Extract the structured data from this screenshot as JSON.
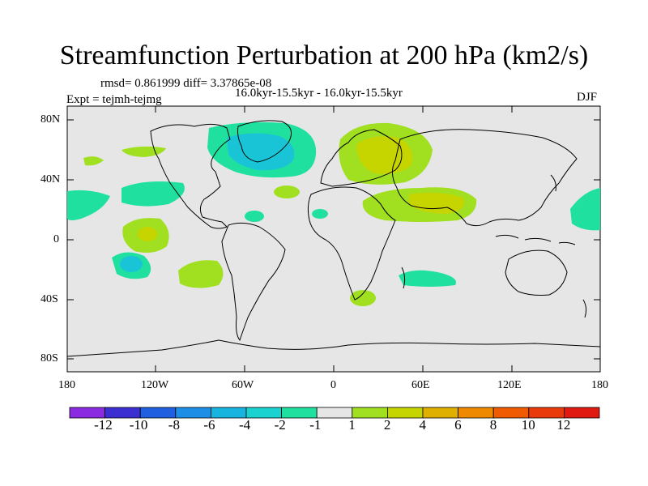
{
  "title": "Streamfunction Perturbation at 200 hPa (km2/s)",
  "stats": "rmsd= 0.861999 diff= 3.37865e-08",
  "period": "16.0kyr-15.5kyr - 16.0kyr-15.5kyr",
  "experiment": "Expt = tejmh-tejmg",
  "season": "DJF",
  "lat_ticks": [
    "80N",
    "40N",
    "0",
    "40S",
    "80S"
  ],
  "lon_ticks": [
    "180",
    "120W",
    "60W",
    "0",
    "60E",
    "120E",
    "180"
  ],
  "colorbar": {
    "labels": [
      "-12",
      "-10",
      "-8",
      "-6",
      "-4",
      "-2",
      "-1",
      "1",
      "2",
      "4",
      "6",
      "8",
      "10",
      "12"
    ],
    "colors": [
      "#8a2be2",
      "#3c2fd2",
      "#1f5fe0",
      "#1d8ee6",
      "#18b4e0",
      "#1ad3d0",
      "#20e0a0",
      "#e6e6e6",
      "#a0e020",
      "#c6d400",
      "#e0b000",
      "#ef8a00",
      "#f05a00",
      "#e83a0a",
      "#e01a10"
    ]
  },
  "chart_data": {
    "type": "map",
    "variable": "Streamfunction Perturbation",
    "level": "200 hPa",
    "units": "km2/s",
    "lon_range": [
      -180,
      180
    ],
    "lat_range": [
      -90,
      90
    ],
    "anomalies": [
      {
        "region": "North Atlantic / Greenland",
        "lon": -45,
        "lat": 65,
        "value": -4
      },
      {
        "region": "Europe / Scandinavia",
        "lon": 30,
        "lat": 55,
        "value": 4
      },
      {
        "region": "Middle East / India",
        "lon": 65,
        "lat": 25,
        "value": 4
      },
      {
        "region": "Central Pacific",
        "lon": -130,
        "lat": 5,
        "value": 4
      },
      {
        "region": "South Pacific",
        "lon": -130,
        "lat": -15,
        "value": -4
      },
      {
        "region": "South Atlantic",
        "lon": -75,
        "lat": -25,
        "value": 2
      },
      {
        "region": "North Pacific",
        "lon": -165,
        "lat": 25,
        "value": -2
      },
      {
        "region": "Western Pacific",
        "lon": 170,
        "lat": 20,
        "value": -2
      },
      {
        "region": "Southern Indian Ocean",
        "lon": 60,
        "lat": -25,
        "value": -2
      },
      {
        "region": "Southern Africa",
        "lon": 20,
        "lat": -35,
        "value": 2
      }
    ]
  }
}
